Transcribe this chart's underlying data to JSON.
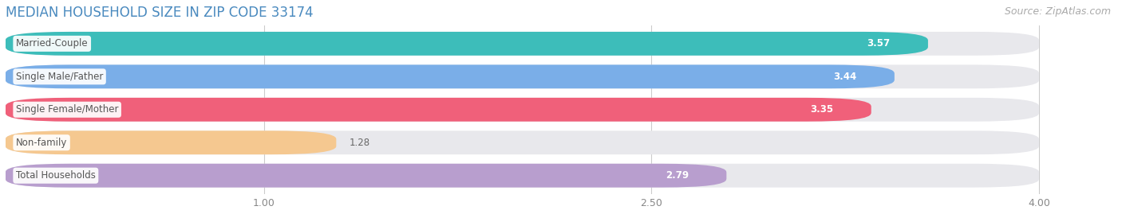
{
  "title": "MEDIAN HOUSEHOLD SIZE IN ZIP CODE 33174",
  "source": "Source: ZipAtlas.com",
  "categories": [
    "Married-Couple",
    "Single Male/Father",
    "Single Female/Mother",
    "Non-family",
    "Total Households"
  ],
  "values": [
    3.57,
    3.44,
    3.35,
    1.28,
    2.79
  ],
  "bar_colors": [
    "#3dbdba",
    "#7aaee8",
    "#f0607a",
    "#f5c890",
    "#b89ece"
  ],
  "bar_bg_color": "#e8e8ec",
  "xlim_min": 0.0,
  "xlim_max": 4.3,
  "data_max": 4.0,
  "xticks": [
    1.0,
    2.5,
    4.0
  ],
  "title_color": "#4a8abf",
  "source_color": "#aaaaaa",
  "value_label_color": "#ffffff",
  "category_label_color": "#555555",
  "title_fontsize": 12,
  "source_fontsize": 9,
  "bar_label_fontsize": 8.5,
  "value_fontsize": 8.5,
  "tick_fontsize": 9,
  "background_color": "#ffffff",
  "bar_height": 0.72,
  "bar_gap": 1.0
}
